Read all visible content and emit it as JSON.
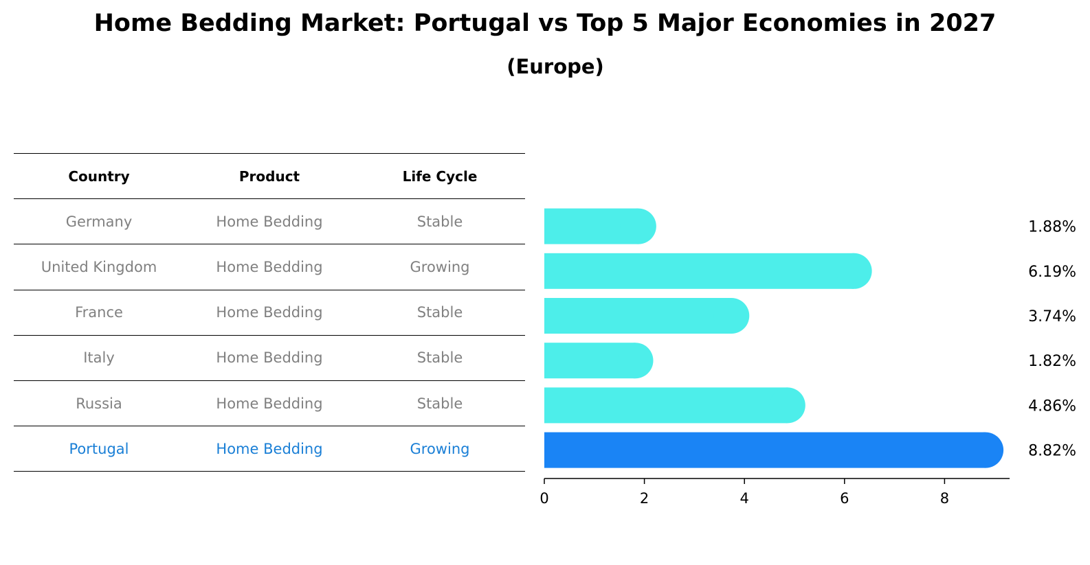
{
  "title": "Home Bedding Market: Portugal vs Top 5 Major Economies in 2027",
  "subtitle": "(Europe)",
  "table": {
    "headers": [
      "Country",
      "Product",
      "Life Cycle"
    ],
    "rows": [
      [
        "Germany",
        "Home Bedding",
        "Stable"
      ],
      [
        "United Kingdom",
        "Home Bedding",
        "Growing"
      ],
      [
        "France",
        "Home Bedding",
        "Stable"
      ],
      [
        "Italy",
        "Home Bedding",
        "Stable"
      ],
      [
        "Russia",
        "Home Bedding",
        "Stable"
      ],
      [
        "Portugal",
        "Home Bedding",
        "Growing"
      ]
    ]
  },
  "colors": {
    "bar": "#4deeea",
    "highlight": "#1a84f5",
    "muted_text": "#808080",
    "highlight_text": "#1a7fd6"
  },
  "chart_data": {
    "type": "bar",
    "orientation": "horizontal",
    "categories": [
      "Germany",
      "United Kingdom",
      "France",
      "Italy",
      "Russia",
      "Portugal"
    ],
    "values": [
      1.88,
      6.19,
      3.74,
      1.82,
      4.86,
      8.82
    ],
    "value_labels": [
      "1.88%",
      "6.19%",
      "3.74%",
      "1.82%",
      "4.86%",
      "8.82%"
    ],
    "highlight": "Portugal",
    "xlim": [
      0,
      9.3
    ],
    "xticks": [
      0,
      2,
      4,
      6,
      8
    ],
    "grid": false
  }
}
